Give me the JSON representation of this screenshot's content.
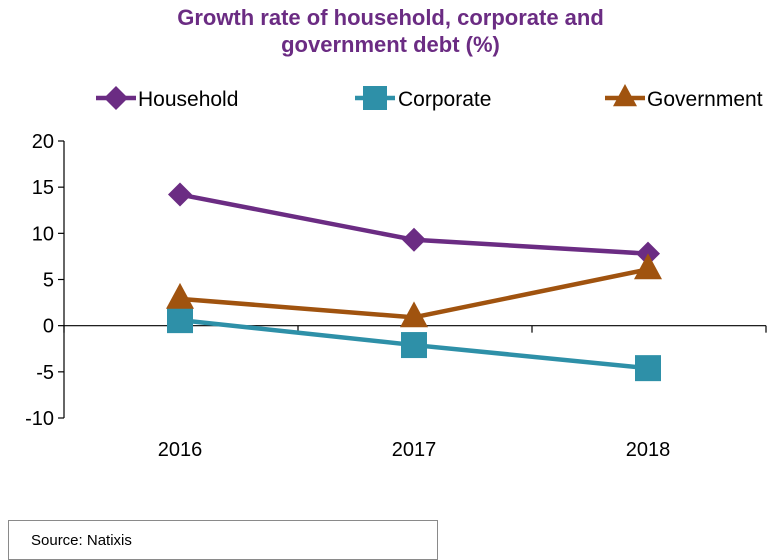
{
  "title": {
    "line1": "Growth rate of household, corporate and",
    "line2": "government debt (%)"
  },
  "source": "Source: Natixis",
  "chart_data": {
    "type": "line",
    "title": "Growth rate of household, corporate and government debt (%)",
    "categories": [
      "2016",
      "2017",
      "2018"
    ],
    "ylim": [
      -10,
      20
    ],
    "yticks": [
      20,
      15,
      10,
      5,
      0,
      -5,
      -10
    ],
    "ytick_labels": [
      "20",
      "15",
      "10",
      "5",
      "0",
      "-5",
      "-10"
    ],
    "grid": false,
    "legend_position": "top",
    "series": [
      {
        "name": "Household",
        "values": [
          14.2,
          9.3,
          7.8
        ],
        "color": "#6b2c83",
        "marker": "diamond"
      },
      {
        "name": "Corporate",
        "values": [
          0.6,
          -2.1,
          -4.6
        ],
        "color": "#2e90a8",
        "marker": "square"
      },
      {
        "name": "Government",
        "values": [
          2.9,
          0.9,
          6.1
        ],
        "color": "#a0530f",
        "marker": "triangle"
      }
    ]
  }
}
